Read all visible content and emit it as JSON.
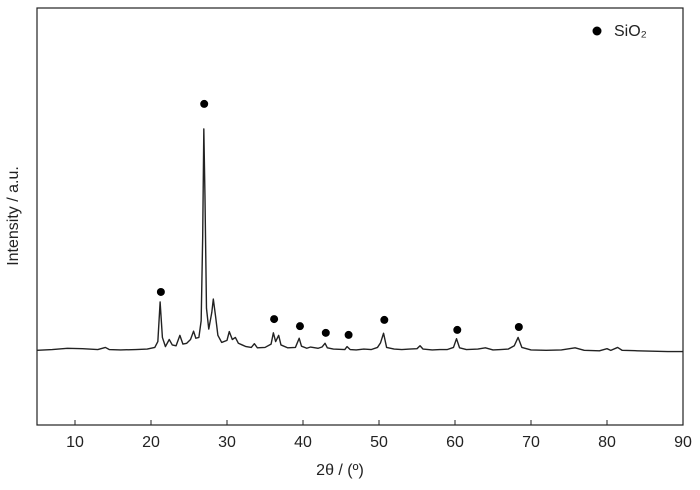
{
  "chart_data": {
    "type": "line",
    "xlabel": "2θ / (º)",
    "ylabel": "Intensity / a.u.",
    "xlim": [
      5,
      90
    ],
    "ylim": [
      0,
      100
    ],
    "xticks": [
      10,
      20,
      30,
      40,
      50,
      60,
      70,
      80,
      90
    ],
    "series": [
      {
        "color": "#222222",
        "x": [
          5,
          7,
          9,
          11,
          13,
          14,
          14.5,
          16,
          18,
          19.5,
          20.5,
          20.9,
          21.2,
          21.5,
          21.9,
          22.4,
          22.8,
          23.3,
          23.8,
          24.2,
          24.7,
          25.2,
          25.6,
          25.9,
          26.3,
          26.6,
          26.8,
          26.95,
          27.1,
          27.3,
          27.6,
          28.0,
          28.2,
          28.5,
          28.8,
          29.3,
          30.0,
          30.3,
          30.7,
          31.1,
          31.5,
          32,
          32.5,
          33.2,
          33.6,
          34,
          35,
          35.8,
          36.1,
          36.4,
          36.8,
          37.1,
          38,
          39,
          39.5,
          39.8,
          40.5,
          41,
          42,
          42.5,
          42.9,
          43.2,
          44,
          45.5,
          45.8,
          46.2,
          47,
          48,
          49,
          49.8,
          50.2,
          50.6,
          51,
          52,
          53,
          54,
          55,
          55.4,
          55.8,
          57,
          58,
          59,
          59.8,
          60.2,
          60.6,
          61.5,
          63,
          64,
          65,
          66,
          67,
          67.8,
          68.3,
          68.8,
          70,
          72,
          74,
          75.8,
          77,
          79,
          80,
          80.5,
          81.4,
          82,
          84,
          86,
          88,
          90
        ],
        "values": [
          17.9,
          18.1,
          18.4,
          18.3,
          18.1,
          18.6,
          18.1,
          18.0,
          18.1,
          18.2,
          18.6,
          20,
          29.5,
          21,
          18.8,
          20.5,
          19.2,
          19.0,
          21.5,
          19.4,
          19.6,
          20.5,
          22.5,
          20.8,
          21,
          25,
          45,
          71,
          55,
          28,
          23,
          27,
          30.2,
          26,
          21.5,
          19.8,
          20.3,
          22.4,
          20.5,
          21,
          19.6,
          19.2,
          18.8,
          18.6,
          19.5,
          18.5,
          18.6,
          19.4,
          22.1,
          20,
          21.5,
          19.2,
          18.5,
          18.6,
          20.8,
          18.9,
          18.4,
          18.7,
          18.4,
          18.7,
          19.6,
          18.5,
          18.2,
          18.1,
          18.8,
          18.1,
          18,
          18.2,
          18.1,
          18.6,
          19.7,
          22,
          18.6,
          18.2,
          18.1,
          18.2,
          18.3,
          19,
          18.2,
          18,
          18.1,
          18.1,
          18.6,
          20.7,
          18.5,
          18.1,
          18.2,
          18.5,
          18.0,
          18.1,
          18.2,
          19,
          21,
          18.6,
          18,
          17.9,
          18,
          18.5,
          17.9,
          17.8,
          18.3,
          17.9,
          18.6,
          17.9,
          17.8,
          17.7,
          17.6,
          17.6
        ]
      }
    ],
    "markers": {
      "name": "SiO₂",
      "color": "#000000",
      "x": [
        21.3,
        27,
        36.2,
        39.6,
        43,
        46,
        50.7,
        60.3,
        68.4
      ],
      "values": [
        31.9,
        77.0,
        25.4,
        23.7,
        22.1,
        21.6,
        25.2,
        22.8,
        23.5
      ]
    }
  }
}
